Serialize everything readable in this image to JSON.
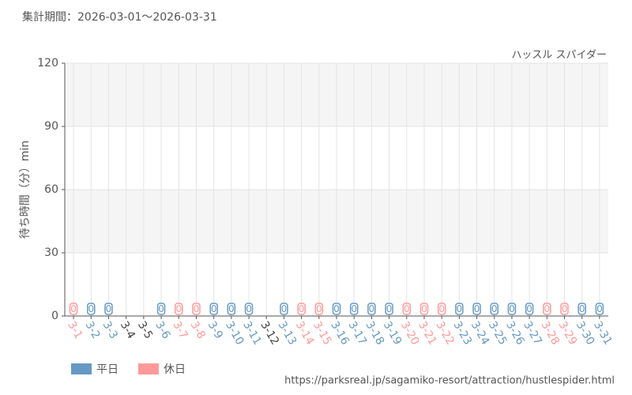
{
  "chart_data": {
    "type": "bar",
    "title": "集計期間：2026-03-01～2026-03-31",
    "subtitle": "ハッスル スパイダー",
    "y_label": "待ち時間（分）min",
    "source": "https://parksreal.jp/sagamiko-resort/attraction/hustlespider.html",
    "categories": [
      "3-1",
      "3-2",
      "3-3",
      "3-4",
      "3-5",
      "3-6",
      "3-7",
      "3-8",
      "3-9",
      "3-10",
      "3-11",
      "3-12",
      "3-13",
      "3-14",
      "3-15",
      "3-16",
      "3-17",
      "3-18",
      "3-19",
      "3-20",
      "3-21",
      "3-22",
      "3-23",
      "3-24",
      "3-25",
      "3-26",
      "3-27",
      "3-28",
      "3-29",
      "3-30",
      "3-31"
    ],
    "series": [
      {
        "name": "平日",
        "color": "#6699c4",
        "values": [
          null,
          0,
          0,
          null,
          null,
          0,
          null,
          null,
          0,
          0,
          0,
          null,
          0,
          null,
          null,
          0,
          0,
          0,
          0,
          null,
          null,
          null,
          0,
          0,
          0,
          0,
          0,
          null,
          null,
          0,
          0
        ]
      },
      {
        "name": "休日",
        "color": "#ff9999",
        "values": [
          0,
          null,
          null,
          null,
          null,
          null,
          0,
          0,
          null,
          null,
          null,
          null,
          null,
          0,
          0,
          null,
          null,
          null,
          null,
          0,
          0,
          0,
          null,
          null,
          null,
          null,
          null,
          0,
          0,
          null,
          null
        ]
      }
    ],
    "ylim": [
      0,
      120
    ],
    "yticks": [
      0,
      30,
      60,
      90,
      120
    ],
    "grid": true
  }
}
